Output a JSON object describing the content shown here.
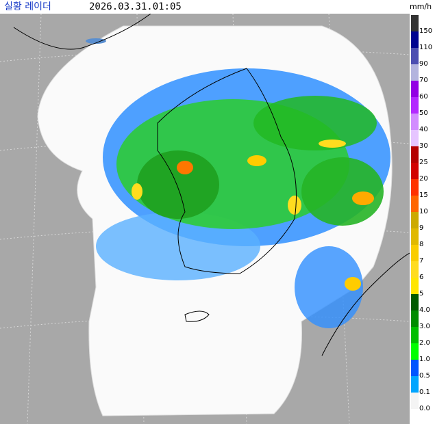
{
  "header": {
    "title": "실황 레이더",
    "timestamp": "2026.03.31.01:05",
    "unit": "mm/h"
  },
  "legend": [
    {
      "label": "150",
      "color": "#333333"
    },
    {
      "label": "110",
      "color": "#000390"
    },
    {
      "label": "90",
      "color": "#4c4eb1"
    },
    {
      "label": "70",
      "color": "#b3b4de"
    },
    {
      "label": "60",
      "color": "#9300e4"
    },
    {
      "label": "50",
      "color": "#b329ff"
    },
    {
      "label": "40",
      "color": "#d28cff"
    },
    {
      "label": "30",
      "color": "#e6c5ff"
    },
    {
      "label": "25",
      "color": "#b40000"
    },
    {
      "label": "20",
      "color": "#d20000"
    },
    {
      "label": "15",
      "color": "#ff3200"
    },
    {
      "label": "10",
      "color": "#ff6600"
    },
    {
      "label": "9",
      "color": "#ccaa00"
    },
    {
      "label": "8",
      "color": "#e0b900"
    },
    {
      "label": "7",
      "color": "#f9cd00"
    },
    {
      "label": "6",
      "color": "#ffdc1f"
    },
    {
      "label": "5",
      "color": "#ffe600"
    },
    {
      "label": "4.0",
      "color": "#005a00"
    },
    {
      "label": "3.0",
      "color": "#008c00"
    },
    {
      "label": "2.0",
      "color": "#00be00"
    },
    {
      "label": "1.0",
      "color": "#00ff00"
    },
    {
      "label": "0.5",
      "color": "#0055ff"
    },
    {
      "label": "0.1",
      "color": "#00a5ff"
    },
    {
      "label": "0.0",
      "color": "#f4f4f4"
    }
  ]
}
